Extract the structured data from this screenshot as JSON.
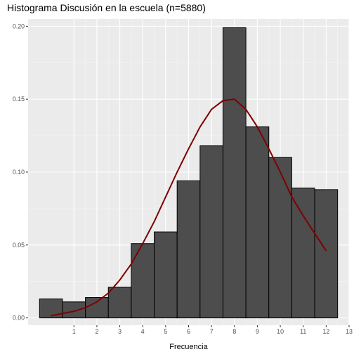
{
  "chart_data": {
    "type": "bar",
    "title": "Histograma Discusión en la escuela (n=5880)",
    "xlabel": "Frecuencia",
    "ylabel": "",
    "x_ticks": [
      "1",
      "2",
      "3",
      "4",
      "5",
      "6",
      "7",
      "8",
      "9",
      "10",
      "11",
      "12",
      "13"
    ],
    "y_ticks": [
      "0.00",
      "0.05",
      "0.10",
      "0.15",
      "0.20"
    ],
    "xlim": [
      -1.0,
      13.0
    ],
    "ylim": [
      -0.005,
      0.205
    ],
    "grid": true,
    "bins": [
      {
        "x0": -0.5,
        "x1": 0.5,
        "value": 0.013
      },
      {
        "x0": 0.5,
        "x1": 1.5,
        "value": 0.011
      },
      {
        "x0": 1.5,
        "x1": 2.5,
        "value": 0.014
      },
      {
        "x0": 2.5,
        "x1": 3.5,
        "value": 0.021
      },
      {
        "x0": 3.5,
        "x1": 4.5,
        "value": 0.051
      },
      {
        "x0": 4.5,
        "x1": 5.5,
        "value": 0.059
      },
      {
        "x0": 5.5,
        "x1": 6.5,
        "value": 0.094
      },
      {
        "x0": 6.5,
        "x1": 7.5,
        "value": 0.118
      },
      {
        "x0": 7.5,
        "x1": 8.5,
        "value": 0.199
      },
      {
        "x0": 8.5,
        "x1": 9.5,
        "value": 0.131
      },
      {
        "x0": 9.5,
        "x1": 10.5,
        "value": 0.11
      },
      {
        "x0": 10.5,
        "x1": 11.5,
        "value": 0.089
      },
      {
        "x0": 11.5,
        "x1": 12.5,
        "value": 0.088
      }
    ],
    "curve": {
      "type": "line",
      "x": [
        0,
        0.5,
        1,
        1.5,
        2,
        2.5,
        3,
        3.5,
        4,
        4.5,
        5,
        5.5,
        6,
        6.5,
        7,
        7.5,
        8,
        8.5,
        9,
        9.5,
        10,
        10.5,
        11,
        11.5,
        12
      ],
      "y": [
        0.0015,
        0.003,
        0.0045,
        0.007,
        0.011,
        0.017,
        0.026,
        0.037,
        0.051,
        0.066,
        0.083,
        0.1,
        0.116,
        0.131,
        0.143,
        0.149,
        0.15,
        0.143,
        0.131,
        0.116,
        0.1,
        0.083,
        0.07,
        0.058,
        0.046
      ]
    },
    "colors": {
      "bar_fill": "#4d4d4d",
      "bar_stroke": "#000000",
      "curve": "#7f0000",
      "panel": "#ebebeb",
      "grid_major": "#ffffff",
      "grid_minor": "#f5f5f5"
    }
  }
}
